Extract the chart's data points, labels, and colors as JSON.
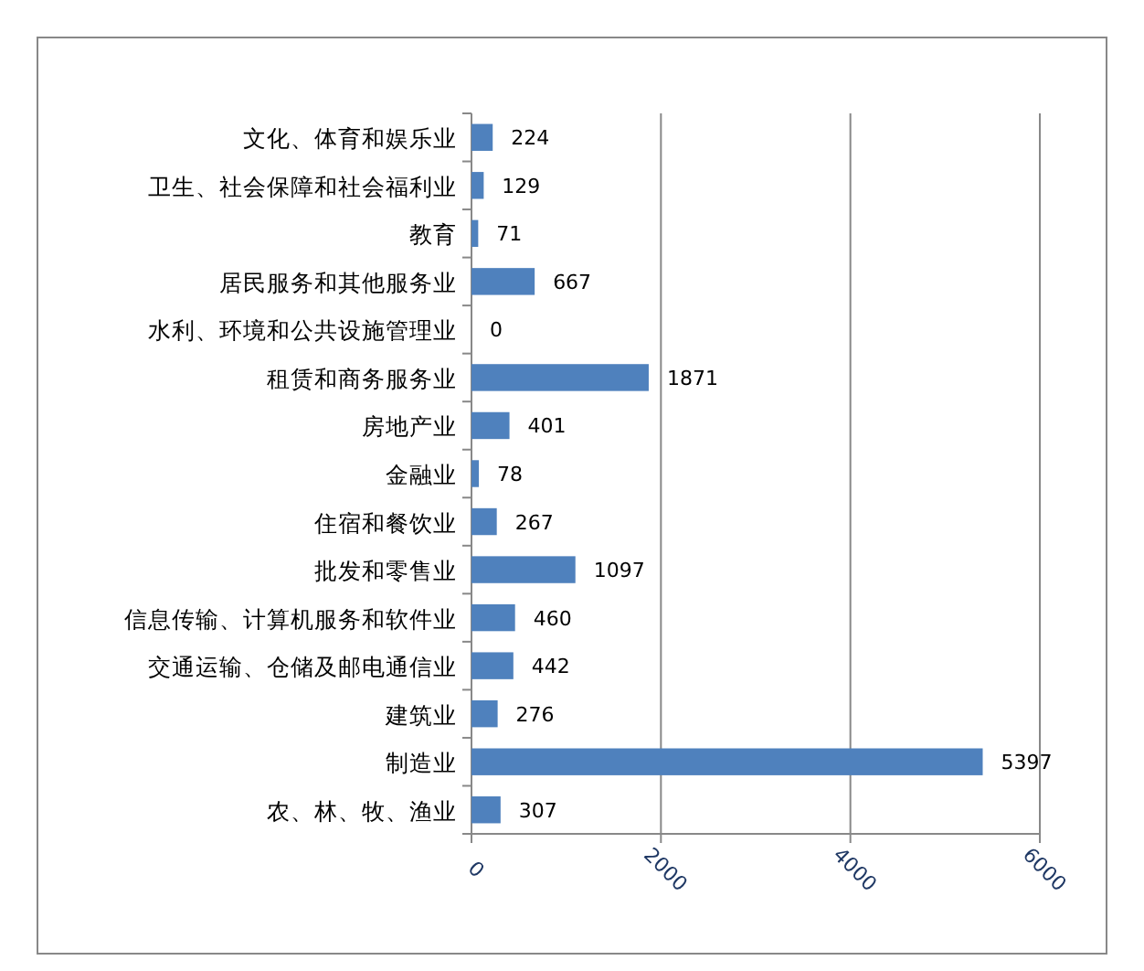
{
  "chart_data": {
    "type": "bar",
    "orientation": "horizontal",
    "categories": [
      "文化、体育和娱乐业",
      "卫生、社会保障和社会福利业",
      "教育",
      "居民服务和其他服务业",
      "水利、环境和公共设施管理业",
      "租赁和商务服务业",
      "房地产业",
      "金融业",
      "住宿和餐饮业",
      "批发和零售业",
      "信息传输、计算机服务和软件业",
      "交通运输、仓储及邮电通信业",
      "建筑业",
      "制造业",
      "农、林、牧、渔业"
    ],
    "values": [
      224,
      129,
      71,
      667,
      0,
      1871,
      401,
      78,
      267,
      1097,
      460,
      442,
      276,
      5397,
      307
    ],
    "color": "#4f81bd",
    "xlim": [
      0,
      6000
    ],
    "xticks": [
      0,
      2000,
      4000,
      6000
    ],
    "grid": "x",
    "data_labels": true
  }
}
